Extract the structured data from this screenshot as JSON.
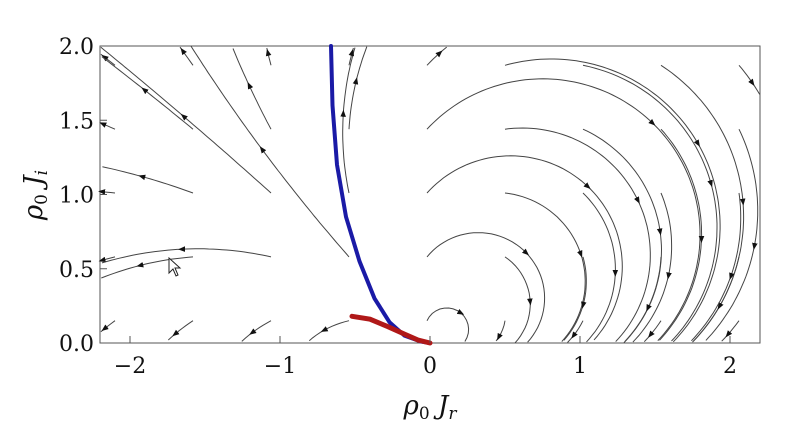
{
  "chart_data": {
    "type": "streamplot",
    "xlabel": "ρ0 Jr",
    "ylabel": "ρ0 Ji",
    "xlim": [
      -2.2,
      2.2
    ],
    "ylim": [
      0.0,
      2.0
    ],
    "x_ticks": [
      {
        "value": -2,
        "label": "−2"
      },
      {
        "value": -1,
        "label": "−1"
      },
      {
        "value": 0,
        "label": "0"
      },
      {
        "value": 1,
        "label": "1"
      },
      {
        "value": 2,
        "label": "2"
      }
    ],
    "y_ticks": [
      {
        "value": 0.0,
        "label": "0.0"
      },
      {
        "value": 0.5,
        "label": "0.5"
      },
      {
        "value": 1.0,
        "label": "1.0"
      },
      {
        "value": 1.5,
        "label": "1.5"
      },
      {
        "value": 2.0,
        "label": "2.0"
      }
    ],
    "grid": false,
    "series": [
      {
        "color": "#1a1aa6",
        "points": [
          [
            -0.66,
            2.0
          ],
          [
            -0.65,
            1.6
          ],
          [
            -0.62,
            1.2
          ],
          [
            -0.56,
            0.85
          ],
          [
            -0.47,
            0.55
          ],
          [
            -0.37,
            0.3
          ],
          [
            -0.27,
            0.14
          ],
          [
            -0.17,
            0.05
          ],
          [
            -0.06,
            0.01
          ],
          [
            0.0,
            0.0
          ]
        ]
      },
      {
        "color": "#b01818",
        "points": [
          [
            -0.52,
            0.18
          ],
          [
            -0.4,
            0.16
          ],
          [
            -0.28,
            0.11
          ],
          [
            -0.17,
            0.06
          ],
          [
            -0.08,
            0.02
          ],
          [
            0.0,
            0.0
          ]
        ]
      }
    ]
  }
}
